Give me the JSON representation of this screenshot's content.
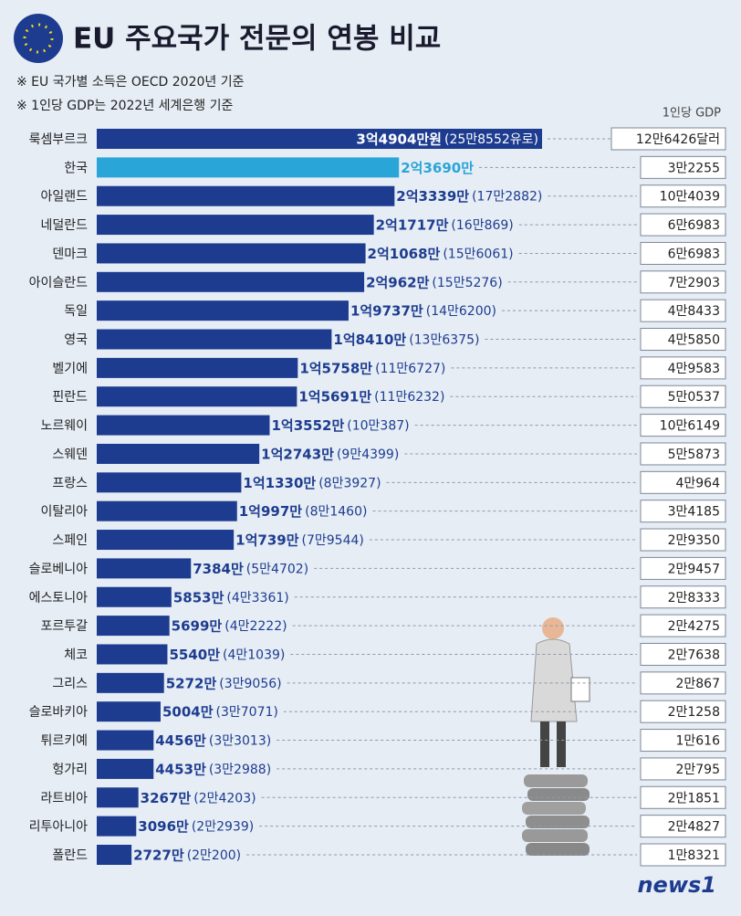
{
  "chart_data": {
    "type": "bar",
    "orientation": "horizontal",
    "title": "EU 주요국가 전문의 연봉 비교",
    "notes": [
      "※ EU 국가별 소득은 OECD 2020년 기준",
      "※ 1인당 GDP는 2022년 세계은행 기준"
    ],
    "gdp_header": "1인당 GDP",
    "source": "news1",
    "categories": [
      "룩셈부르크",
      "한국",
      "아일랜드",
      "네덜란드",
      "덴마크",
      "아이슬란드",
      "독일",
      "영국",
      "벨기에",
      "핀란드",
      "노르웨이",
      "스웨덴",
      "프랑스",
      "이탈리아",
      "스페인",
      "슬로베니아",
      "에스토니아",
      "포르투갈",
      "체코",
      "그리스",
      "슬로바키아",
      "튀르키예",
      "헝가리",
      "라트비아",
      "리투아니아",
      "폴란드"
    ],
    "values": [
      34904,
      23690,
      23339,
      21717,
      21068,
      20962,
      19737,
      18410,
      15758,
      15691,
      13552,
      12743,
      11330,
      10997,
      10739,
      7384,
      5853,
      5699,
      5540,
      5272,
      5004,
      4456,
      4453,
      3267,
      3096,
      2727
    ],
    "value_labels": [
      "3억4904만원",
      "2억3690만",
      "2억3339만",
      "2억1717만",
      "2억1068만",
      "2억962만",
      "1억9737만",
      "1억8410만",
      "1억5758만",
      "1억5691만",
      "1억3552만",
      "1억2743만",
      "1억1330만",
      "1억997만",
      "1억739만",
      "7384만",
      "5853만",
      "5699만",
      "5540만",
      "5272만",
      "5004만",
      "4456만",
      "4453만",
      "3267만",
      "3096만",
      "2727만"
    ],
    "euro_labels": [
      "(25만8552유로)",
      null,
      "(17만2882)",
      "(16만869)",
      "(15만6061)",
      "(15만5276)",
      "(14만6200)",
      "(13만6375)",
      "(11만6727)",
      "(11만6232)",
      "(10만387)",
      "(9만4399)",
      "(8만3927)",
      "(8만1460)",
      "(7만9544)",
      "(5만4702)",
      "(4만3361)",
      "(4만2222)",
      "(4만1039)",
      "(3만9056)",
      "(3만7071)",
      "(3만3013)",
      "(3만2988)",
      "(2만4203)",
      "(2만2939)",
      "(2만200)"
    ],
    "gdp_labels": [
      "12만6426달러",
      "3만2255",
      "10만4039",
      "6만6983",
      "6만6983",
      "7만2903",
      "4만8433",
      "4만5850",
      "4만9583",
      "5만0537",
      "10만6149",
      "5만5873",
      "4만964",
      "3만4185",
      "2만9350",
      "2만9457",
      "2만8333",
      "2만4275",
      "2만7638",
      "2만867",
      "2만1258",
      "1만616",
      "2만795",
      "2만1851",
      "2만4827",
      "1만8321"
    ],
    "colors": [
      "#1d3c8f",
      "#2aa5d8",
      "#1d3c8f",
      "#1d3c8f",
      "#1d3c8f",
      "#1d3c8f",
      "#1d3c8f",
      "#1d3c8f",
      "#1d3c8f",
      "#1d3c8f",
      "#1d3c8f",
      "#1d3c8f",
      "#1d3c8f",
      "#1d3c8f",
      "#1d3c8f",
      "#1d3c8f",
      "#1d3c8f",
      "#1d3c8f",
      "#1d3c8f",
      "#1d3c8f",
      "#1d3c8f",
      "#1d3c8f",
      "#1d3c8f",
      "#1d3c8f",
      "#1d3c8f",
      "#1d3c8f"
    ]
  }
}
